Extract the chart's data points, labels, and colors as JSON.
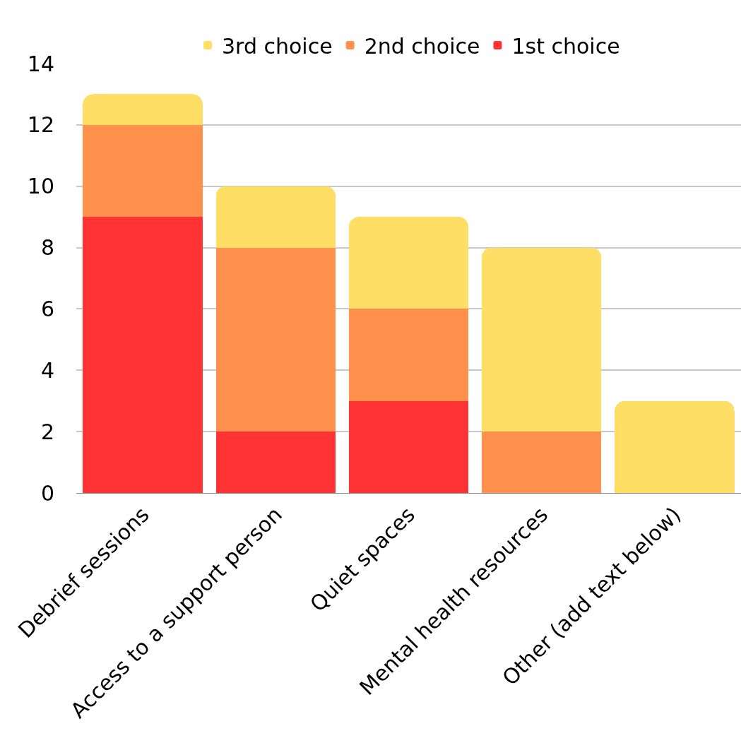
{
  "chart_data": {
    "type": "bar",
    "stacked": true,
    "categories": [
      "Debrief sessions",
      "Access to a support person",
      "Quiet spaces",
      "Mental health resources",
      "Other (add text below)"
    ],
    "series": [
      {
        "name": "1st choice",
        "color": "#ff3333",
        "values": [
          9,
          2,
          3,
          0,
          0
        ]
      },
      {
        "name": "2nd choice",
        "color": "#ff914d",
        "values": [
          3,
          6,
          3,
          2,
          0
        ]
      },
      {
        "name": "3rd choice",
        "color": "#ffde66",
        "values": [
          1,
          2,
          3,
          6,
          3
        ]
      }
    ],
    "ylim": [
      0,
      14
    ],
    "yticks": [
      0,
      2,
      4,
      6,
      8,
      10,
      12,
      14
    ],
    "grid": "y",
    "legend": "top"
  }
}
